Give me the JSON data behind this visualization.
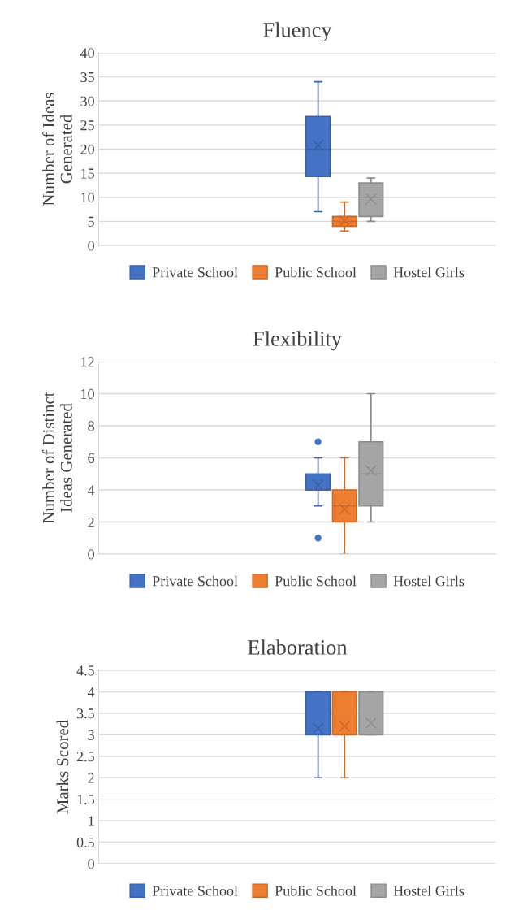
{
  "chart_data": [
    {
      "type": "box",
      "title": "Fluency",
      "ylabel": "Number of Ideas\nGenerated",
      "categories": [
        null
      ],
      "ylim": [
        0,
        40
      ],
      "yticks": [
        0,
        5,
        10,
        15,
        20,
        25,
        30,
        35,
        40
      ],
      "grid": "y",
      "legend": "bottom",
      "marker": "cross",
      "series": [
        {
          "name": "Private School",
          "color": "#4472c4",
          "boxes": [
            {
              "low": 7,
              "q1": 14.3,
              "median": 20,
              "q3": 26.8,
              "high": 34,
              "mean": 20.8
            }
          ]
        },
        {
          "name": "Public School",
          "color": "#ed7d31",
          "boxes": [
            {
              "low": 3,
              "q1": 4,
              "median": 5,
              "q3": 6,
              "high": 9,
              "mean": 5.1
            }
          ]
        },
        {
          "name": "Hostel Girls",
          "color": "#a5a5a5",
          "boxes": [
            {
              "low": 5,
              "q1": 6,
              "median": 10,
              "q3": 13,
              "high": 14,
              "mean": 9.6
            }
          ]
        }
      ]
    },
    {
      "type": "box",
      "title": "Flexibility",
      "ylabel": "Number of Distinct\nIdeas Generated",
      "categories": [
        null
      ],
      "ylim": [
        0,
        12
      ],
      "yticks": [
        0,
        2,
        4,
        6,
        8,
        10,
        12
      ],
      "grid": "y",
      "legend": "bottom",
      "marker": "cross",
      "series": [
        {
          "name": "Private School",
          "color": "#4472c4",
          "boxes": [
            {
              "low": 3,
              "q1": 4,
              "median": 4,
              "q3": 5,
              "high": 6,
              "mean": 4.3,
              "outliers": [
                7,
                1
              ]
            }
          ]
        },
        {
          "name": "Public School",
          "color": "#ed7d31",
          "boxes": [
            {
              "low": 0,
              "q1": 2,
              "median": 3,
              "q3": 4,
              "high": 6,
              "mean": 2.8
            }
          ]
        },
        {
          "name": "Hostel Girls",
          "color": "#a5a5a5",
          "boxes": [
            {
              "low": 2,
              "q1": 3,
              "median": 5,
              "q3": 7,
              "high": 10,
              "mean": 5.2
            }
          ]
        }
      ]
    },
    {
      "type": "box",
      "title": "Elaboration",
      "ylabel": "Marks Scored",
      "categories": [
        null
      ],
      "ylim": [
        0,
        4.5
      ],
      "yticks": [
        0,
        0.5,
        1,
        1.5,
        2,
        2.5,
        3,
        3.5,
        4,
        4.5
      ],
      "grid": "y",
      "legend": "bottom",
      "marker": "cross",
      "series": [
        {
          "name": "Private School",
          "color": "#4472c4",
          "boxes": [
            {
              "low": 2,
              "q1": 3,
              "median": 3,
              "q3": 4,
              "high": 4,
              "mean": 3.15
            }
          ]
        },
        {
          "name": "Public School",
          "color": "#ed7d31",
          "boxes": [
            {
              "low": 2,
              "q1": 3,
              "median": 3,
              "q3": 4,
              "high": 4,
              "mean": 3.2
            }
          ]
        },
        {
          "name": "Hostel Girls",
          "color": "#a5a5a5",
          "boxes": [
            {
              "low": 3,
              "q1": 3,
              "median": 3,
              "q3": 4,
              "high": 4,
              "mean": 3.27
            }
          ]
        }
      ]
    }
  ]
}
